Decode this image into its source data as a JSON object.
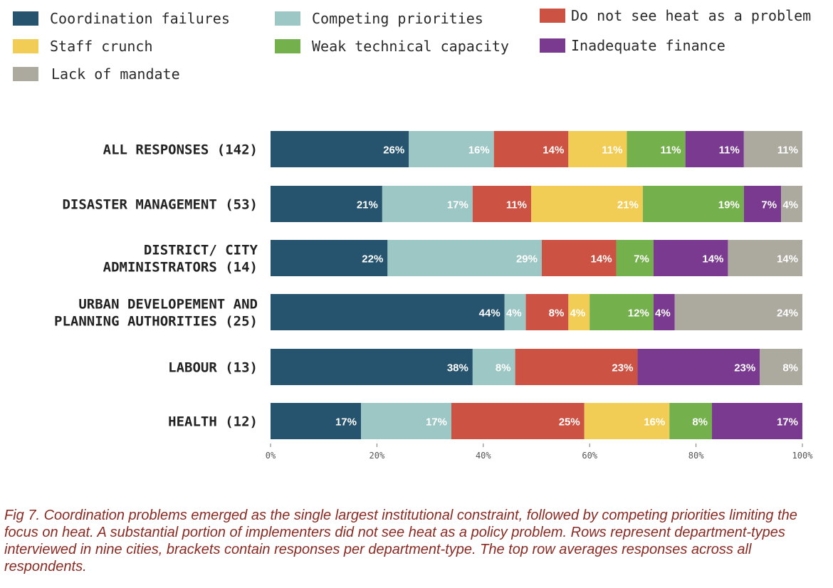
{
  "legend": {
    "items": [
      {
        "key": "coordination",
        "label": "Coordination failures",
        "color": "#26546e"
      },
      {
        "key": "competing",
        "label": "Competing priorities",
        "color": "#9cc7c4"
      },
      {
        "key": "not_problem",
        "label": "Do not see heat as a problem",
        "color": "#cc5243"
      },
      {
        "key": "staff",
        "label": "Staff crunch",
        "color": "#f2cd55"
      },
      {
        "key": "technical",
        "label": "Weak technical capacity",
        "color": "#74b04c"
      },
      {
        "key": "finance",
        "label": "Inadequate finance",
        "color": "#7a3a8f"
      },
      {
        "key": "mandate",
        "label": "Lack of mandate",
        "color": "#aca99f"
      }
    ]
  },
  "chart_data": {
    "type": "bar",
    "orientation": "horizontal",
    "stacked": true,
    "categories": [
      [
        "ALL RESPONSES (142)"
      ],
      [
        "DISASTER MANAGEMENT (53)"
      ],
      [
        "DISTRICT/ CITY",
        "ADMINISTRATORS (14)"
      ],
      [
        "URBAN DEVELOPEMENT AND",
        "PLANNING AUTHORITIES (25)"
      ],
      [
        "LABOUR (13)"
      ],
      [
        "HEALTH (12)"
      ]
    ],
    "series": [
      {
        "name": "Coordination failures",
        "color": "#26546e",
        "values": [
          26,
          21,
          22,
          44,
          38,
          17
        ]
      },
      {
        "name": "Competing priorities",
        "color": "#9cc7c4",
        "values": [
          16,
          17,
          29,
          4,
          8,
          17
        ]
      },
      {
        "name": "Do not see heat as a problem",
        "color": "#cc5243",
        "values": [
          14,
          11,
          14,
          8,
          23,
          25
        ]
      },
      {
        "name": "Staff crunch",
        "color": "#f2cd55",
        "values": [
          11,
          21,
          0,
          4,
          0,
          16
        ]
      },
      {
        "name": "Weak technical capacity",
        "color": "#74b04c",
        "values": [
          11,
          19,
          7,
          12,
          0,
          8
        ]
      },
      {
        "name": "Inadequate finance",
        "color": "#7a3a8f",
        "values": [
          11,
          7,
          14,
          4,
          23,
          17
        ]
      },
      {
        "name": "Lack of mandate",
        "color": "#aca99f",
        "values": [
          11,
          4,
          14,
          24,
          8,
          0
        ]
      }
    ],
    "xlim": [
      0,
      100
    ],
    "xticks": [
      0,
      20,
      40,
      60,
      80,
      100
    ],
    "xtick_labels": [
      "0%",
      "20%",
      "40%",
      "60%",
      "80%",
      "100%"
    ],
    "value_suffix": "%"
  },
  "caption": "Fig 7. Coordination problems emerged as the single largest institutional constraint, followed by competing priorities limiting the focus on heat. A substantial portion of implementers did not see heat as a policy problem. Rows represent department-types interviewed in nine cities, brackets contain responses per department-type. The top row averages responses across all respondents."
}
